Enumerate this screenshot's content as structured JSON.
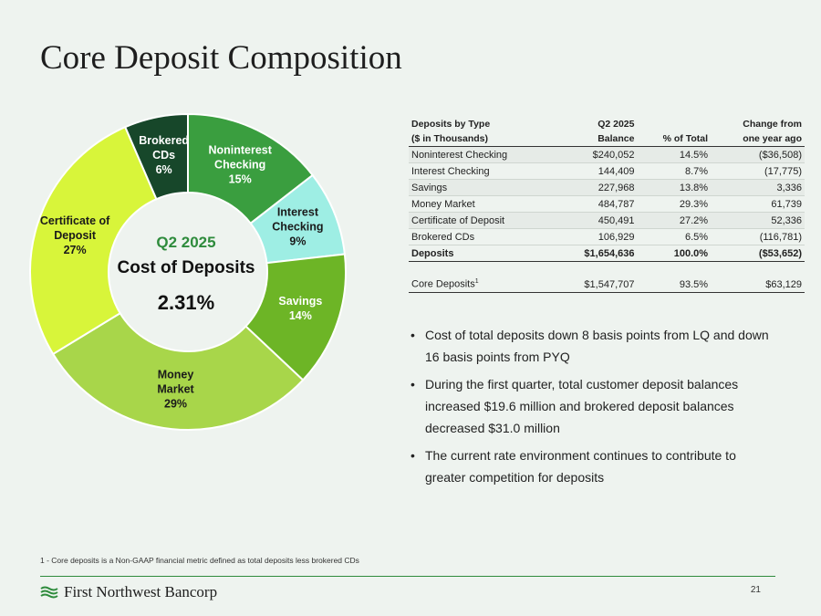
{
  "page": {
    "title": "Core Deposit Composition",
    "footnote": "1 - Core deposits is a Non-GAAP financial metric defined as total deposits less brokered CDs",
    "page_number": "21",
    "company": "First Northwest Bancorp"
  },
  "donut_center": {
    "period": "Q2 2025",
    "label": "Cost of Deposits",
    "value": "2.31%"
  },
  "chart_data": {
    "type": "pie",
    "donut": true,
    "slices": [
      {
        "label": [
          "Noninterest",
          "Checking"
        ],
        "value": 14.5,
        "display": "15%",
        "color": "#3a9e3f",
        "text_color": "#ffffff"
      },
      {
        "label": [
          "Interest",
          "Checking"
        ],
        "value": 8.7,
        "display": "9%",
        "color": "#9eeee4",
        "text_color": "#1a1a1a"
      },
      {
        "label": [
          "Savings"
        ],
        "value": 13.8,
        "display": "14%",
        "color": "#6db526",
        "text_color": "#ffffff"
      },
      {
        "label": [
          "Money",
          "Market"
        ],
        "value": 29.3,
        "display": "29%",
        "color": "#a8d64a",
        "text_color": "#1a1a1a"
      },
      {
        "label": [
          "Certificate of",
          "Deposit"
        ],
        "value": 27.2,
        "display": "27%",
        "color": "#d8f53a",
        "text_color": "#1a1a1a"
      },
      {
        "label": [
          "Brokered",
          "CDs"
        ],
        "value": 6.5,
        "display": "6%",
        "color": "#17472a",
        "text_color": "#ffffff"
      }
    ]
  },
  "table": {
    "headers": {
      "type": "Deposits by Type",
      "units": "($ in Thousands)",
      "period": "Q2 2025",
      "balance": "Balance",
      "pct": "% of Total",
      "change_top": "Change from",
      "change_bottom": "one year ago"
    },
    "rows": [
      {
        "name": "Noninterest Checking",
        "balance": "$240,052",
        "pct": "14.5%",
        "change": "($36,508)"
      },
      {
        "name": "Interest Checking",
        "balance": "144,409",
        "pct": "8.7%",
        "change": "(17,775)"
      },
      {
        "name": "Savings",
        "balance": "227,968",
        "pct": "13.8%",
        "change": "3,336"
      },
      {
        "name": "Money Market",
        "balance": "484,787",
        "pct": "29.3%",
        "change": "61,739"
      },
      {
        "name": "Certificate of Deposit",
        "balance": "450,491",
        "pct": "27.2%",
        "change": "52,336"
      },
      {
        "name": "Brokered CDs",
        "balance": "106,929",
        "pct": "6.5%",
        "change": "(116,781)"
      }
    ],
    "total": {
      "name": "Deposits",
      "balance": "$1,654,636",
      "pct": "100.0%",
      "change": "($53,652)"
    },
    "core": {
      "name": "Core Deposits",
      "sup": "1",
      "balance": "$1,547,707",
      "pct": "93.5%",
      "change": "$63,129"
    }
  },
  "bullets": [
    "Cost of total deposits down 8 basis points from LQ and down 16 basis points from PYQ",
    "During the first quarter, total customer deposit balances increased $19.6 million and brokered deposit balances decreased $31.0 million",
    "The current rate environment continues to contribute to greater competition for deposits"
  ]
}
